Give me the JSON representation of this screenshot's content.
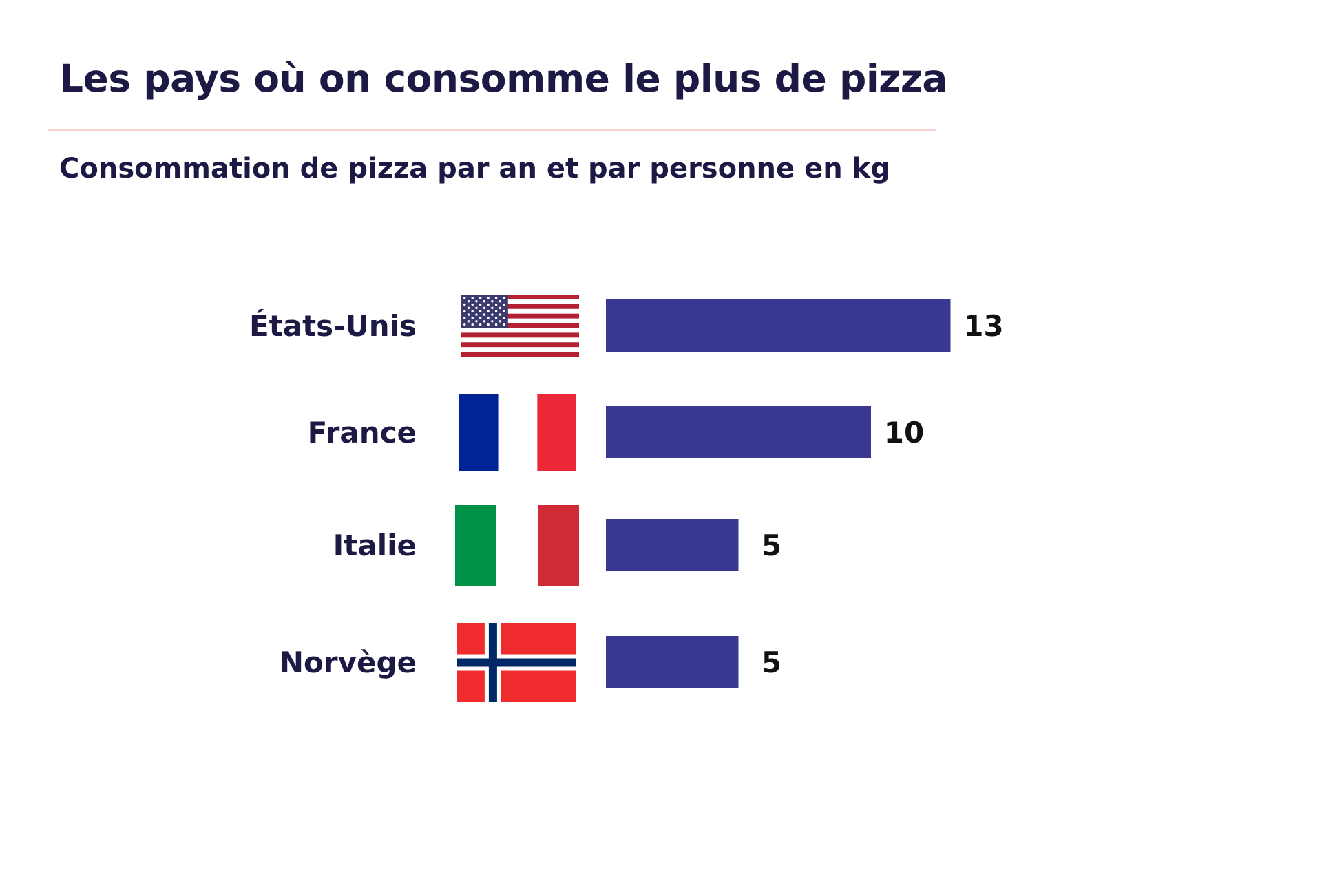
{
  "chart_data": {
    "type": "bar",
    "orientation": "horizontal",
    "title": "Les pays où on consomme le plus de pizza",
    "subtitle": "Consommation de pizza par an et par personne en kg",
    "categories": [
      "États-Unis",
      "France",
      "Italie",
      "Norvège"
    ],
    "values": [
      13,
      10,
      5,
      5
    ],
    "value_labels": [
      "13",
      "10",
      "5",
      "5"
    ],
    "flags": [
      "us-flag-icon",
      "france-flag-icon",
      "italy-flag-icon",
      "norway-flag-icon"
    ],
    "bar_color": "#383893",
    "grid": false,
    "legend": "none",
    "xlim": [
      0,
      13
    ]
  },
  "colors": {
    "text": "#1c1a45",
    "rule": "#f6d3d3",
    "us_red": "#b22234",
    "us_blue": "#3c3b6e",
    "fr_blue": "#002395",
    "fr_red": "#ed2939",
    "it_green": "#009246",
    "it_red": "#ce2b37",
    "no_red": "#ef2b2d",
    "no_blue": "#002868"
  }
}
